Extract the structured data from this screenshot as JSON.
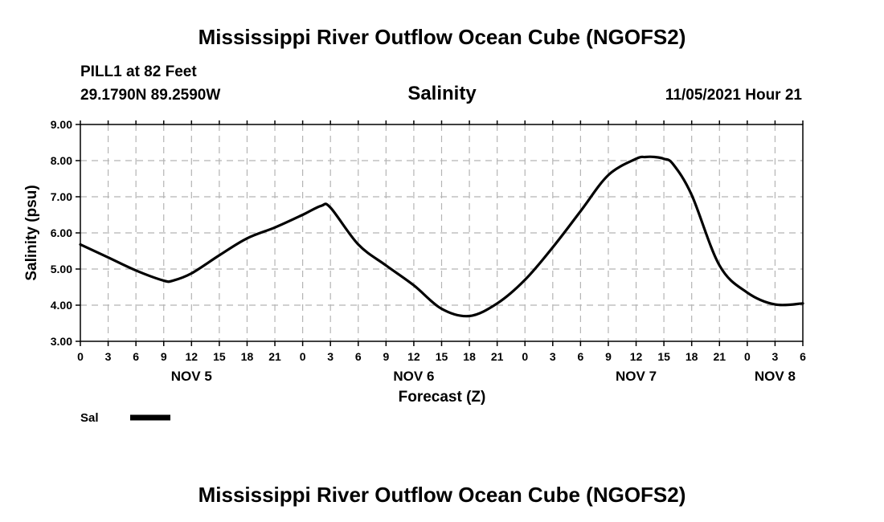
{
  "header": {
    "title": "Mississippi River Outflow Ocean Cube (NGOFS2)",
    "station": "PILL1 at 82 Feet",
    "coords": "29.1790N  89.2590W",
    "variable": "Salinity",
    "datetime": "11/05/2021 Hour 21"
  },
  "footer": {
    "title": "Mississippi River Outflow Ocean Cube (NGOFS2)"
  },
  "chart_data": {
    "type": "line",
    "title": "Salinity",
    "xlabel": "Forecast (Z)",
    "ylabel": "Salinity (psu)",
    "ylim": [
      3.0,
      9.0
    ],
    "xlim": [
      0,
      78
    ],
    "grid": true,
    "y_ticks": [
      "3.00",
      "4.00",
      "5.00",
      "6.00",
      "7.00",
      "8.00",
      "9.00"
    ],
    "x_ticks": [
      "0",
      "3",
      "6",
      "9",
      "12",
      "15",
      "18",
      "21",
      "0",
      "3",
      "6",
      "9",
      "12",
      "15",
      "18",
      "21",
      "0",
      "3",
      "6",
      "9",
      "12",
      "15",
      "18",
      "21",
      "0",
      "3",
      "6"
    ],
    "day_labels": [
      {
        "label": "NOV 5",
        "hours_since_start": 12
      },
      {
        "label": "NOV 6",
        "hours_since_start": 36
      },
      {
        "label": "NOV 7",
        "hours_since_start": 60
      },
      {
        "label": "NOV 8",
        "hours_since_start": 75
      }
    ],
    "series": [
      {
        "name": "Sal",
        "color": "#000000",
        "hours_since_start": [
          0,
          3,
          6,
          9,
          10,
          12,
          15,
          18,
          21,
          24,
          26,
          27,
          30,
          33,
          36,
          39,
          42,
          45,
          48,
          51,
          54,
          57,
          60,
          61,
          62,
          63,
          64,
          66,
          69,
          72,
          75,
          78
        ],
        "values": [
          5.68,
          5.32,
          4.96,
          4.68,
          4.68,
          4.88,
          5.38,
          5.85,
          6.15,
          6.5,
          6.75,
          6.7,
          5.68,
          5.1,
          4.55,
          3.9,
          3.7,
          4.05,
          4.7,
          5.6,
          6.6,
          7.6,
          8.05,
          8.1,
          8.1,
          8.05,
          7.9,
          7.05,
          5.1,
          4.35,
          4.02,
          4.05
        ]
      }
    ],
    "legend": {
      "position": "bottom-left"
    }
  }
}
